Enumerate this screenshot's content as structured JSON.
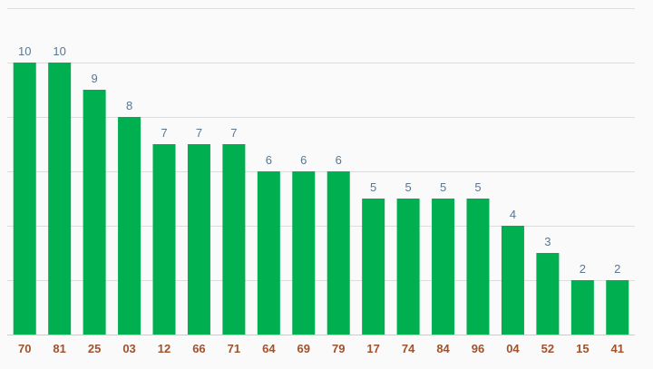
{
  "chart_data": {
    "type": "bar",
    "categories": [
      "70",
      "81",
      "25",
      "03",
      "12",
      "66",
      "71",
      "64",
      "69",
      "79",
      "17",
      "74",
      "84",
      "96",
      "04",
      "52",
      "15",
      "41"
    ],
    "values": [
      10,
      10,
      9,
      8,
      7,
      7,
      7,
      6,
      6,
      6,
      5,
      5,
      5,
      5,
      4,
      3,
      2,
      2
    ],
    "ylim": [
      0,
      12
    ],
    "grid": true,
    "data_labels": true,
    "legend": "none",
    "colors": {
      "bar": "#00b050",
      "value_label": "#5a7690",
      "tick_label": "#a0522d",
      "grid": "#dddddd",
      "background": "#fafafa"
    }
  }
}
